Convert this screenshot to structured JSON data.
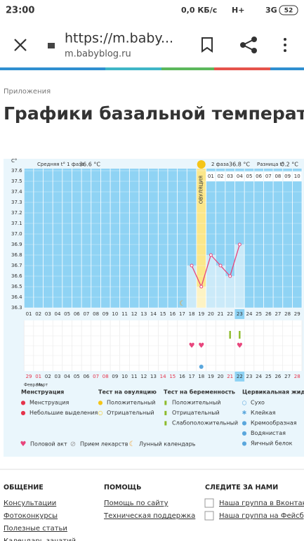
{
  "status_bar": {
    "time": "23:00",
    "speed": "0,0 КБ/с",
    "network1": "H+",
    "network2": "3G",
    "battery": "52"
  },
  "browser": {
    "url": "https://m.baby...",
    "domain": "m.babyblog.ru"
  },
  "breadcrumb": "Приложения",
  "title": "Графики базальной температуры",
  "chart": {
    "type": "line",
    "y_unit": "С°",
    "phase1_label": "Средняя t° 1 фаза",
    "phase1_value": "36.6 °C",
    "phase2_label": "2 фаза",
    "phase2_value": "36.8 °C",
    "diff_label": "Разница t°",
    "diff_value": "0.2 °C",
    "ovulation_label": "ОВУЛЯЦИЯ",
    "categories": [
      "01",
      "02",
      "03",
      "04",
      "05",
      "06",
      "07",
      "08",
      "09",
      "10",
      "11",
      "12",
      "13",
      "14",
      "15",
      "16",
      "17",
      "18",
      "19",
      "20",
      "21",
      "22",
      "23",
      "24",
      "25",
      "26",
      "27",
      "28",
      "29"
    ],
    "phase2_days": [
      "01",
      "02",
      "03",
      "04",
      "05",
      "06",
      "07",
      "08",
      "09",
      "10"
    ],
    "dates": [
      "29",
      "01",
      "02",
      "03",
      "04",
      "05",
      "06",
      "07",
      "08",
      "09",
      "10",
      "11",
      "12",
      "13",
      "14",
      "15",
      "16",
      "17",
      "18",
      "19",
      "20",
      "21",
      "22",
      "23",
      "24",
      "25",
      "26",
      "27",
      "28"
    ],
    "months": [
      "Февраль",
      "Март"
    ],
    "values": [
      null,
      null,
      null,
      null,
      null,
      null,
      null,
      null,
      null,
      null,
      null,
      null,
      null,
      null,
      null,
      null,
      null,
      36.7,
      36.5,
      36.8,
      36.7,
      36.6,
      36.9,
      null,
      null,
      null,
      null,
      null,
      null
    ],
    "ylim": [
      36.3,
      37.6
    ],
    "yticks": [
      36.3,
      36.4,
      36.5,
      36.6,
      36.7,
      36.8,
      36.9,
      {
        "value": 37,
        "label": "37.0"
      },
      37.1,
      37.2,
      37.3,
      37.4,
      37.5,
      37.6
    ],
    "color": "#e8457c"
  },
  "legend": {
    "columns": [
      {
        "title": "Менструация",
        "items": [
          "Менструация",
          "Небольшие выделения"
        ]
      },
      {
        "title": "Тест на овуляцию",
        "items": [
          "Положительный",
          "Отрицательный"
        ]
      },
      {
        "title": "Тест на беременность",
        "items": [
          "Положительный",
          "Отрицательный",
          "Слабоположительный"
        ]
      },
      {
        "title": "Цервикальная жидкость",
        "items": [
          "Сухо",
          "Клейкая",
          "Кремообразная",
          "Водянистая",
          "Яичный белок"
        ]
      }
    ],
    "bottom": [
      "Половой акт",
      "Прием лекарств",
      "Лунный календарь"
    ]
  },
  "footer": [
    {
      "title": "ОБЩЕНИЕ",
      "links": [
        "Консультации",
        "Фотоконкурсы",
        "Полезные статьи",
        "Календарь зачатий"
      ]
    },
    {
      "title": "ПОМОЩЬ",
      "links": [
        "Помощь по сайту",
        "Техническая поддержка"
      ]
    },
    {
      "title": "СЛЕДИТЕ ЗА НАМИ",
      "links": [
        "Наша группа в Вконтакте",
        "Наша группа на Фейсбуке"
      ]
    }
  ]
}
